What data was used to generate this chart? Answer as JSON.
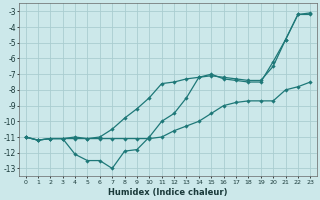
{
  "xlabel": "Humidex (Indice chaleur)",
  "background_color": "#cce8ea",
  "grid_color": "#aacdd0",
  "line_color": "#1e7878",
  "xlim": [
    -0.5,
    23.5
  ],
  "ylim": [
    -13.5,
    -2.5
  ],
  "yticks": [
    -13,
    -12,
    -11,
    -10,
    -9,
    -8,
    -7,
    -6,
    -5,
    -4,
    -3
  ],
  "xticks": [
    0,
    1,
    2,
    3,
    4,
    5,
    6,
    7,
    8,
    9,
    10,
    11,
    12,
    13,
    14,
    15,
    16,
    17,
    18,
    19,
    20,
    21,
    22,
    23
  ],
  "line1_x": [
    0,
    1,
    2,
    3,
    4,
    5,
    6,
    7,
    8,
    9,
    10,
    11,
    12,
    13,
    14,
    15,
    16,
    17,
    18,
    19,
    20,
    21,
    22,
    23
  ],
  "line1_y": [
    -11.0,
    -11.2,
    -11.1,
    -11.1,
    -11.1,
    -11.1,
    -11.1,
    -11.1,
    -11.1,
    -11.1,
    -11.1,
    -11.0,
    -10.6,
    -10.3,
    -10.0,
    -9.5,
    -9.0,
    -8.8,
    -8.7,
    -8.7,
    -8.7,
    -8.0,
    -7.8,
    -7.5
  ],
  "line2_x": [
    0,
    1,
    2,
    3,
    4,
    5,
    6,
    7,
    8,
    9,
    10,
    11,
    12,
    13,
    14,
    15,
    16,
    17,
    18,
    19,
    20,
    21,
    22,
    23
  ],
  "line2_y": [
    -11.0,
    -11.2,
    -11.1,
    -11.1,
    -12.1,
    -12.5,
    -12.5,
    -13.0,
    -11.9,
    -11.8,
    -11.0,
    -10.0,
    -9.5,
    -8.5,
    -7.2,
    -7.0,
    -7.3,
    -7.4,
    -7.5,
    -7.5,
    -6.2,
    -4.8,
    -3.2,
    -3.2
  ],
  "line3_x": [
    0,
    1,
    2,
    3,
    4,
    5,
    6,
    7,
    8,
    9,
    10,
    11,
    12,
    13,
    14,
    15,
    16,
    17,
    18,
    19,
    20,
    21,
    22,
    23
  ],
  "line3_y": [
    -11.0,
    -11.2,
    -11.1,
    -11.1,
    -11.0,
    -11.1,
    -11.0,
    -10.5,
    -9.8,
    -9.2,
    -8.5,
    -7.6,
    -7.5,
    -7.3,
    -7.2,
    -7.1,
    -7.2,
    -7.3,
    -7.4,
    -7.4,
    -6.5,
    -4.8,
    -3.2,
    -3.1
  ]
}
